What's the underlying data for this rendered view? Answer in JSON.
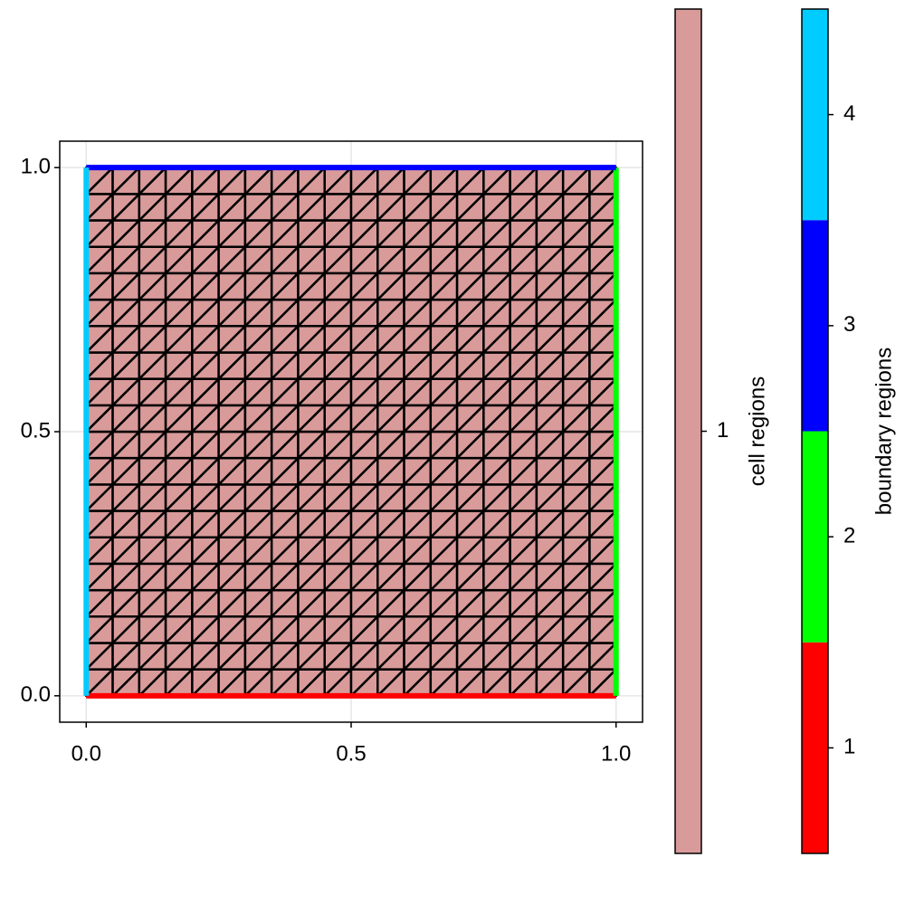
{
  "chart_data": {
    "type": "mesh",
    "x": [
      0,
      0.05,
      0.1,
      0.15,
      0.2,
      0.25,
      0.3,
      0.35,
      0.4,
      0.45,
      0.5,
      0.55,
      0.6,
      0.65,
      0.7,
      0.75,
      0.8,
      0.85,
      0.9,
      0.95,
      1
    ],
    "y": [
      0,
      0.05,
      0.1,
      0.15,
      0.2,
      0.25,
      0.3,
      0.35,
      0.4,
      0.45,
      0.5,
      0.55,
      0.6,
      0.65,
      0.7,
      0.75,
      0.8,
      0.85,
      0.9,
      0.95,
      1
    ],
    "xlim": [
      -0.05,
      1.05
    ],
    "ylim": [
      -0.05,
      1.05
    ],
    "xticks": [
      {
        "value": 0,
        "label": "0.0"
      },
      {
        "value": 0.5,
        "label": "0.5"
      },
      {
        "value": 1,
        "label": "1.0"
      }
    ],
    "yticks": [
      {
        "value": 0,
        "label": "0.0"
      },
      {
        "value": 0.5,
        "label": "0.5"
      },
      {
        "value": 1,
        "label": "1.0"
      }
    ],
    "grid": true,
    "cell_regions": {
      "label": "cell regions",
      "values": [
        1
      ],
      "colors": [
        "#d99a9a"
      ],
      "clim": [
        0.5,
        1.5
      ]
    },
    "boundary_regions": {
      "label": "boundary regions",
      "values": [
        1,
        2,
        3,
        4
      ],
      "colors": [
        "#ff0000",
        "#00ff00",
        "#0000ff",
        "#00ccff"
      ],
      "sides": [
        "bottom",
        "right",
        "top",
        "left"
      ],
      "clim": [
        0.5,
        4.5
      ]
    }
  }
}
